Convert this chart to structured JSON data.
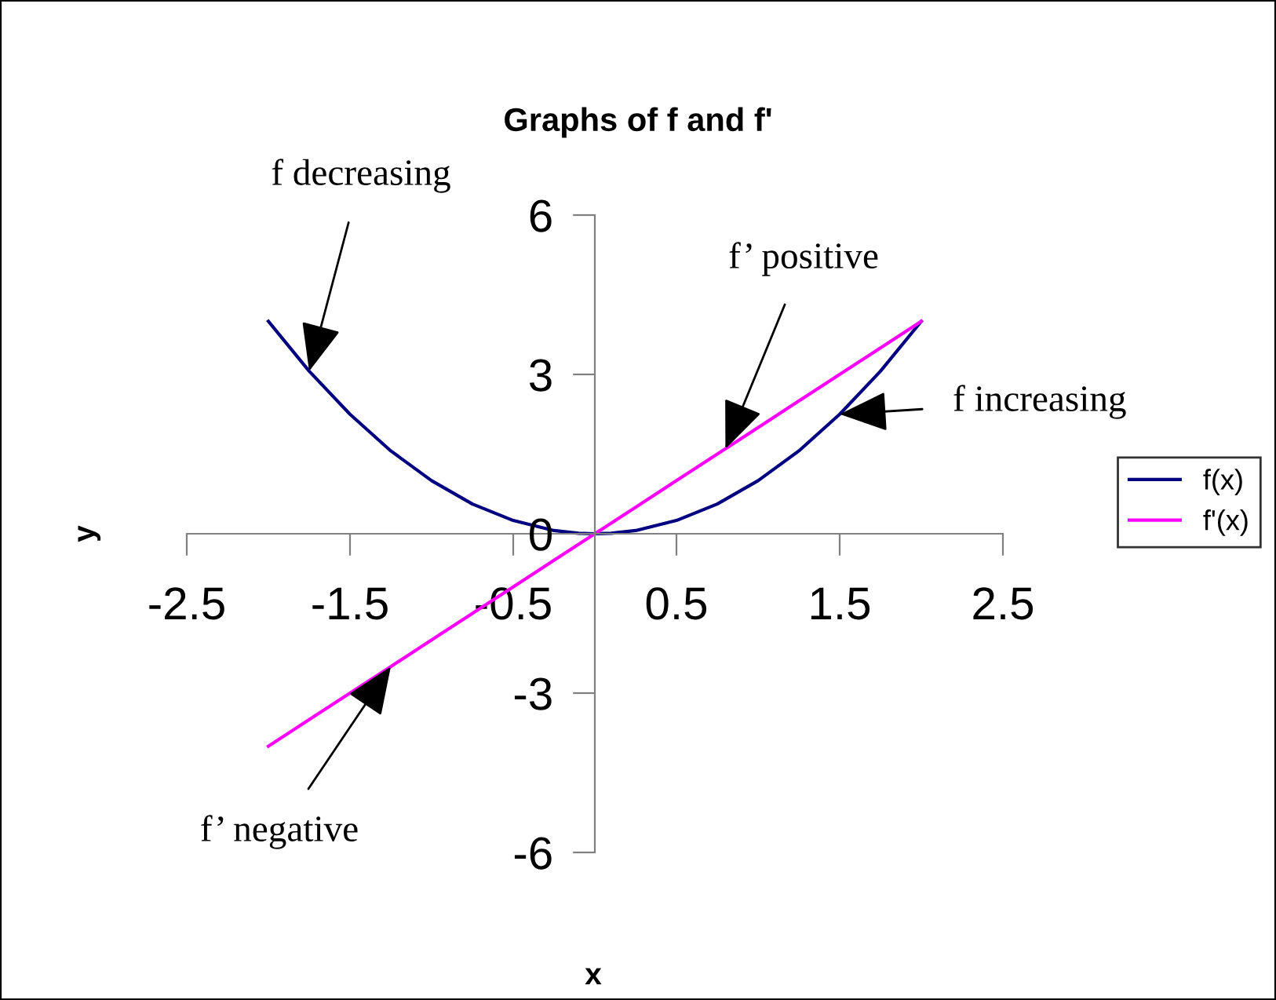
{
  "chart_data": {
    "type": "line",
    "title": "Graphs of f and f'",
    "xlabel": "x",
    "ylabel": "y",
    "x": [
      -2.0,
      -1.75,
      -1.5,
      -1.25,
      -1.0,
      -0.75,
      -0.5,
      -0.25,
      -0.1,
      0.0,
      0.1,
      0.25,
      0.5,
      0.75,
      1.0,
      1.25,
      1.5,
      1.75,
      2.0
    ],
    "series": [
      {
        "name": "f(x)",
        "color": "#000080",
        "values": [
          4.0,
          3.06,
          2.25,
          1.56,
          1.0,
          0.56,
          0.25,
          0.06,
          0.01,
          0.0,
          0.01,
          0.06,
          0.25,
          0.56,
          1.0,
          1.56,
          2.25,
          3.06,
          4.0
        ]
      },
      {
        "name": "f'(x)",
        "color": "#ff00ff",
        "values": [
          -4.0,
          -3.5,
          -3.0,
          -2.5,
          -2.0,
          -1.5,
          -1.0,
          -0.5,
          -0.2,
          0.0,
          0.2,
          0.5,
          1.0,
          1.5,
          2.0,
          2.5,
          3.0,
          3.5,
          4.0
        ]
      }
    ],
    "xlim": [
      -2.5,
      2.5
    ],
    "xticks": [
      -2.5,
      -1.5,
      -0.5,
      0.5,
      1.5,
      2.5
    ],
    "ylim": [
      -6,
      6
    ],
    "yticks": [
      -6,
      -3,
      0,
      3,
      6
    ],
    "annotations": [
      {
        "text": "f decreasing",
        "x": -1.75,
        "y": 3.06
      },
      {
        "text": "f’ positive",
        "x": 0.8,
        "y": 1.6
      },
      {
        "text": "f increasing",
        "x": 1.5,
        "y": 2.25
      },
      {
        "text": "f’ negative",
        "x": -1.25,
        "y": -2.5
      }
    ],
    "legend": "right",
    "grid": false,
    "marker": "none",
    "line_style": "solid"
  }
}
